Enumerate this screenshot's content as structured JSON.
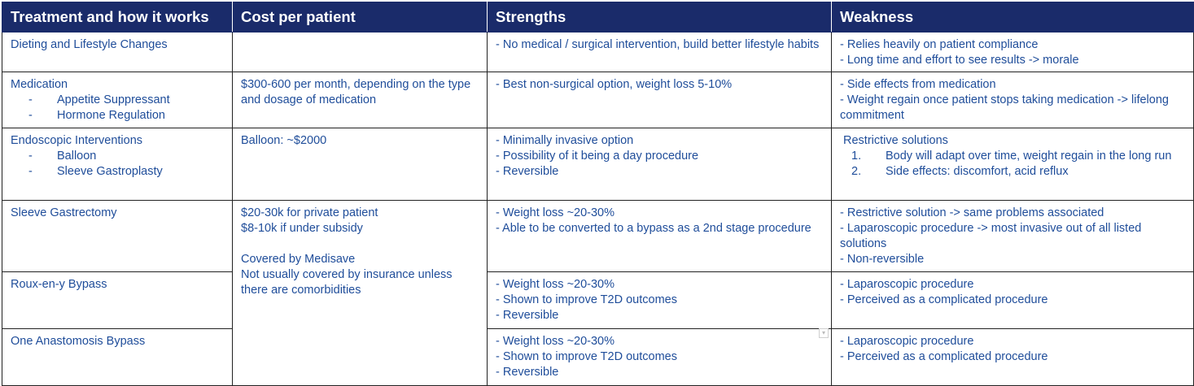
{
  "headers": [
    "Treatment and how it works",
    "Cost per patient",
    "Strengths",
    "Weakness"
  ],
  "rows": [
    {
      "treatment": "Dieting and Lifestyle Changes",
      "subitems": [],
      "cost": "",
      "strengths": [
        "- No medical / surgical intervention, build better lifestyle habits"
      ],
      "weakness": [
        "- Relies heavily on patient compliance",
        "- Long time and effort to see results -> morale"
      ]
    },
    {
      "treatment": "Medication",
      "subitems": [
        "Appetite Suppressant",
        "Hormone Regulation"
      ],
      "cost": "$300-600 per month, depending on the type and dosage of medication",
      "strengths": [
        "- Best non-surgical option, weight loss 5-10%"
      ],
      "weakness": [
        "- Side effects from medication",
        "- Weight regain once patient stops taking medication -> lifelong commitment"
      ]
    },
    {
      "treatment": "Endoscopic Interventions",
      "subitems": [
        "Balloon",
        "Sleeve Gastroplasty"
      ],
      "cost": "Balloon: ~$2000",
      "strengths": [
        "- Minimally invasive option",
        "- Possibility of it being a day procedure",
        "- Reversible"
      ],
      "weakness_title": "Restrictive solutions",
      "weakness_numbered": [
        "Body will adapt over time, weight regain in the long run",
        "Side effects: discomfort, acid reflux"
      ]
    },
    {
      "treatment": "Sleeve Gastrectomy",
      "subitems": [],
      "cost_lines": [
        "$20-30k for private patient",
        "$8-10k if under subsidy",
        "",
        "Covered by Medisave",
        "Not usually covered by insurance unless there are comorbidities"
      ],
      "strengths": [
        "- Weight loss ~20-30%",
        "- Able to be converted to a bypass as a 2nd stage procedure"
      ],
      "weakness": [
        "- Restrictive solution -> same problems associated",
        "- Laparoscopic procedure -> most invasive out of all listed solutions",
        "- Non-reversible"
      ]
    },
    {
      "treatment": "Roux-en-y Bypass",
      "subitems": [],
      "strengths": [
        "- Weight loss ~20-30%",
        "- Shown to improve T2D outcomes",
        "- Reversible"
      ],
      "weakness": [
        "- Laparoscopic procedure",
        "- Perceived as a complicated procedure"
      ]
    },
    {
      "treatment": "One Anastomosis Bypass",
      "subitems": [],
      "strengths": [
        "- Weight loss ~20-30%",
        "- Shown to improve T2D outcomes",
        "- Reversible"
      ],
      "weakness": [
        "- Laparoscopic procedure",
        "- Perceived as a complicated procedure"
      ]
    }
  ],
  "dash": "-",
  "numbers": [
    "1.",
    "2."
  ],
  "colors": {
    "header_bg": "#1a2b6a",
    "header_text": "#ffffff",
    "cell_text": "#1f4d9a",
    "border": "#222222"
  },
  "icons": {
    "cell_corner": "chevron-down-icon"
  }
}
